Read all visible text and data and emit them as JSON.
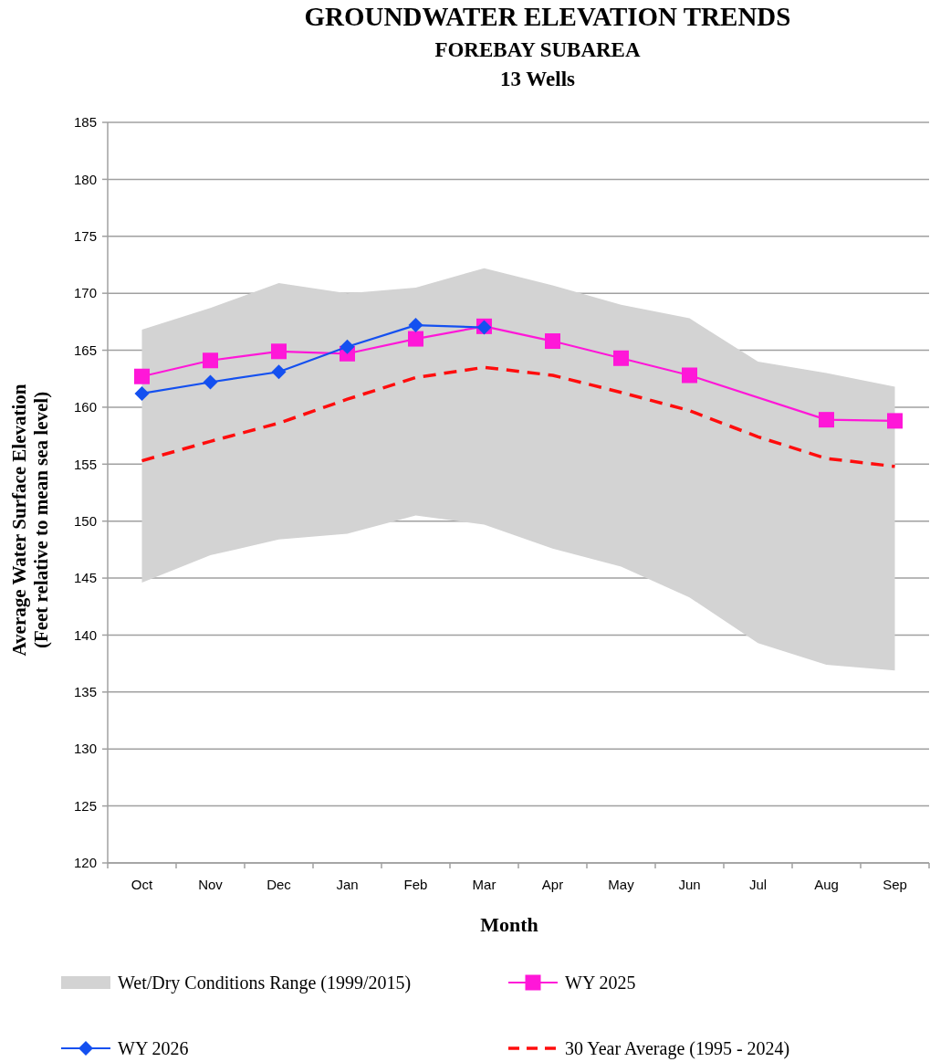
{
  "chart_data": {
    "type": "line",
    "title": "GROUNDWATER ELEVATION TRENDS",
    "subtitle": "FOREBAY SUBAREA\n13 Wells",
    "xlabel": "Month",
    "ylabel": "Average Water Surface Elevation\n(Feet relative to mean sea level)",
    "categories": [
      "Oct",
      "Nov",
      "Dec",
      "Jan",
      "Feb",
      "Mar",
      "Apr",
      "May",
      "Jun",
      "Jul",
      "Aug",
      "Sep"
    ],
    "ylim": [
      120,
      185
    ],
    "yticks": [
      120,
      125,
      130,
      135,
      140,
      145,
      150,
      155,
      160,
      165,
      170,
      175,
      180,
      185
    ],
    "grid": "y",
    "legend": "bottom",
    "series": [
      {
        "name": "Wet/Dry Conditions Range (1999/2015)",
        "color": "#d3d3d3",
        "values": [
          null,
          null,
          null,
          null,
          null,
          null,
          null,
          null,
          null,
          null,
          null,
          null
        ],
        "lower": [
          144.6,
          147.0,
          148.4,
          148.9,
          150.5,
          149.7,
          147.6,
          146.0,
          143.3,
          139.3,
          137.4,
          136.9
        ],
        "upper": [
          166.8,
          168.7,
          170.9,
          170.0,
          170.5,
          172.2,
          170.7,
          169.0,
          167.8,
          164.0,
          163.0,
          161.8
        ]
      },
      {
        "name": "WY 2025",
        "color": "#ff17d8",
        "marker": "square",
        "values": [
          162.7,
          164.1,
          164.9,
          164.7,
          166.0,
          167.1,
          165.8,
          164.3,
          162.8,
          null,
          158.9,
          158.8
        ]
      },
      {
        "name": "WY 2026",
        "color": "#1450f0",
        "marker": "diamond",
        "values": [
          161.2,
          162.2,
          163.1,
          165.3,
          167.2,
          167.0,
          null,
          null,
          null,
          null,
          null,
          null
        ]
      },
      {
        "name": "30 Year Average (1995 - 2024)",
        "color": "#ff0d0d",
        "marker": "none",
        "line_style": "dashed",
        "values": [
          155.3,
          157.0,
          158.6,
          160.7,
          162.6,
          163.5,
          162.8,
          161.3,
          159.7,
          157.4,
          155.5,
          154.8
        ]
      }
    ]
  }
}
